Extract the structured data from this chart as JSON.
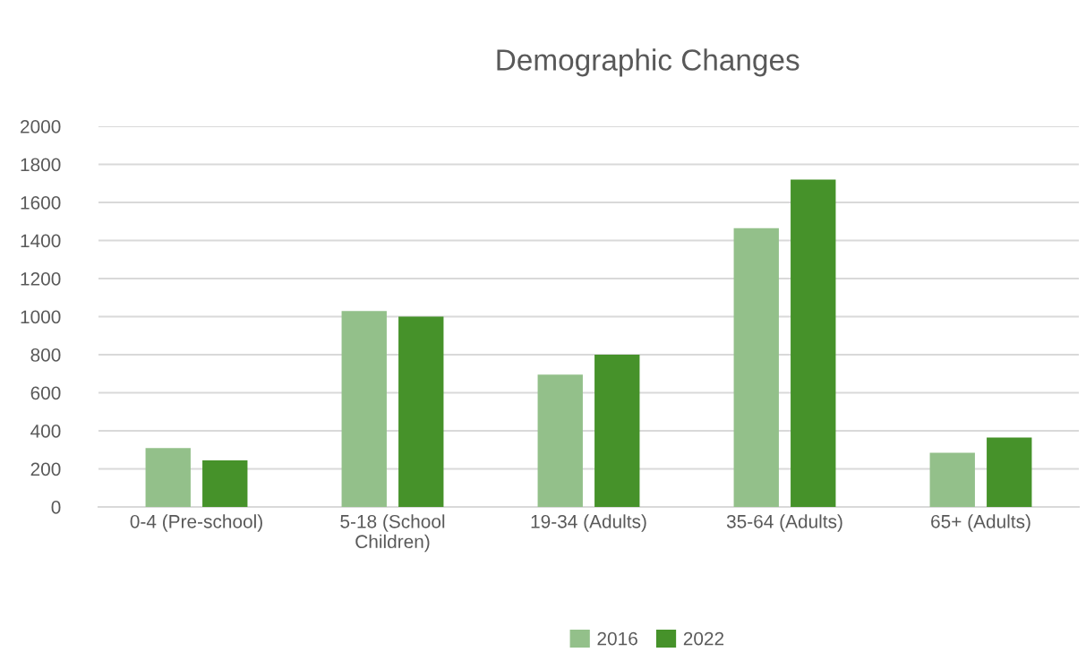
{
  "chart_data": {
    "type": "bar",
    "title": "Demographic Changes",
    "categories": [
      "0-4 (Pre-school)",
      "5-18 (School\nChildren)",
      "19-34 (Adults)",
      "35-64 (Adults)",
      "65+ (Adults)"
    ],
    "series": [
      {
        "name": "2016",
        "color": "#93c08a",
        "values": [
          310,
          1030,
          695,
          1465,
          285
        ]
      },
      {
        "name": "2022",
        "color": "#46922a",
        "values": [
          245,
          1000,
          800,
          1720,
          365
        ]
      }
    ],
    "ylim": [
      0,
      2000
    ],
    "yticks": [
      0,
      200,
      400,
      600,
      800,
      1000,
      1200,
      1400,
      1600,
      1800,
      2000
    ],
    "grid": "y",
    "legend": "bottom"
  }
}
